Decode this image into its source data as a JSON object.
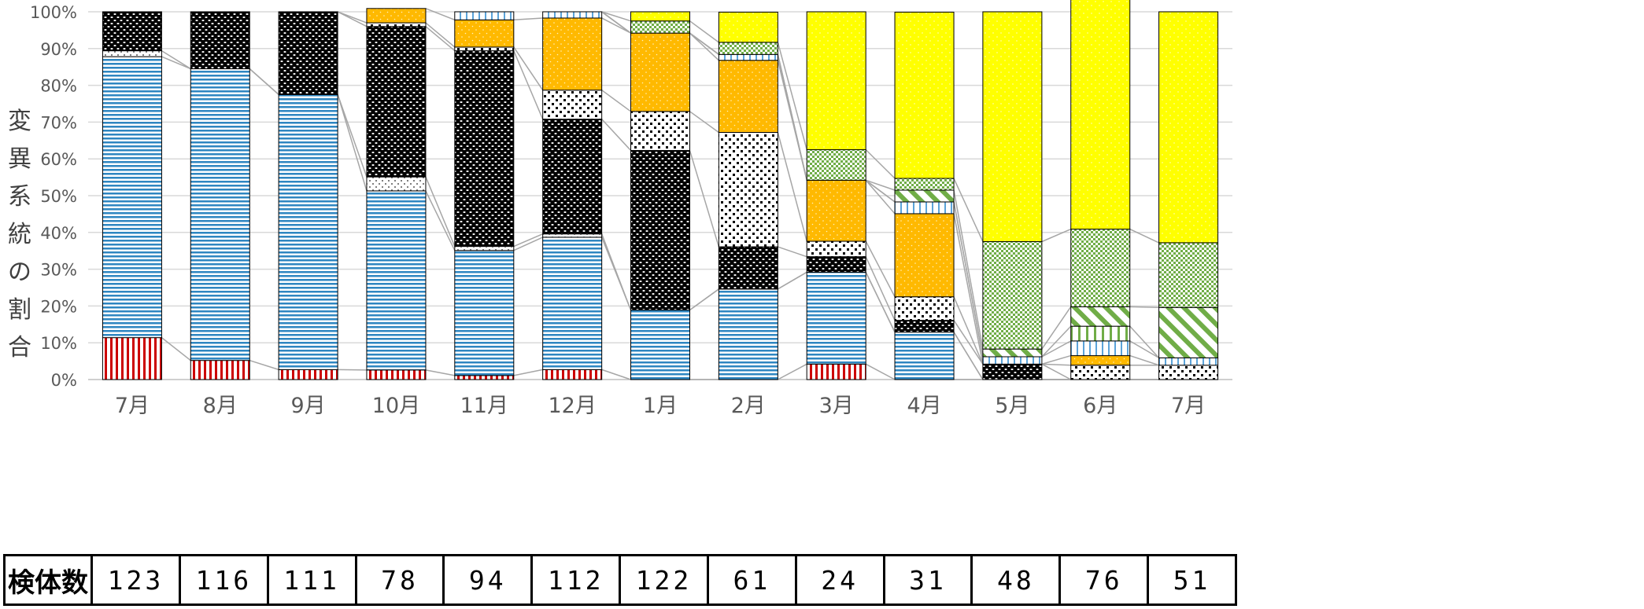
{
  "chart_data": {
    "type": "bar",
    "stacked": true,
    "percent": true,
    "ylabel": "変異系統の割合",
    "ylim": [
      0,
      100
    ],
    "yticks": [
      "0%",
      "10%",
      "20%",
      "30%",
      "40%",
      "50%",
      "60%",
      "70%",
      "80%",
      "90%",
      "100%"
    ],
    "grid": true,
    "categories": [
      "7月",
      "8月",
      "9月",
      "10月",
      "11月",
      "12月",
      "1月",
      "2月",
      "3月",
      "4月",
      "5月",
      "6月",
      "7月"
    ],
    "series": [
      {
        "values": [
          11.4,
          5.2,
          2.7,
          2.6,
          1.1,
          2.7,
          0,
          0,
          4.2,
          0,
          0,
          0,
          0
        ]
      },
      {
        "values": [
          76.4,
          79.3,
          74.8,
          48.7,
          34.0,
          36.0,
          18.9,
          24.6,
          25.0,
          12.9,
          0,
          0,
          0
        ]
      },
      {
        "values": [
          1.6,
          0,
          0,
          3.8,
          1.1,
          0.9,
          0,
          0,
          0,
          0,
          0,
          0,
          0
        ]
      },
      {
        "values": [
          10.6,
          15.5,
          22.5,
          40.9,
          53.2,
          31.2,
          43.4,
          11.5,
          4.2,
          3.2,
          4.2,
          0,
          0
        ]
      },
      {
        "values": [
          0,
          0,
          0,
          1.0,
          1.0,
          7.9,
          10.6,
          31.1,
          4.2,
          6.4,
          0,
          3.9,
          3.9
        ]
      },
      {
        "values": [
          0,
          0,
          0,
          3.9,
          7.4,
          19.6,
          21.3,
          19.6,
          16.6,
          22.6,
          0,
          2.6,
          0
        ]
      },
      {
        "values": [
          0,
          0,
          0,
          0,
          2.2,
          1.7,
          0,
          1.6,
          0,
          3.2,
          2.0,
          4.0,
          2.0
        ]
      },
      {
        "values": [
          0,
          0,
          0,
          0,
          0,
          0,
          0,
          0,
          0,
          0,
          0,
          4.0,
          0
        ]
      },
      {
        "values": [
          0,
          0,
          0,
          0,
          0,
          0,
          0,
          0,
          0,
          3.2,
          2.1,
          5.3,
          13.7
        ]
      },
      {
        "values": [
          0,
          0,
          0,
          0,
          0,
          0,
          3.3,
          3.3,
          8.3,
          3.2,
          29.2,
          21.1,
          17.6
        ]
      },
      {
        "values": [
          0,
          0,
          0,
          0,
          0,
          0,
          2.5,
          8.2,
          37.5,
          45.2,
          62.5,
          63.1,
          62.8
        ]
      }
    ],
    "series_colors": [
      "#cc0000",
      "#2e86c1",
      "#777777",
      "#000000",
      "#000000",
      "#ffb900",
      "#5ba3d9",
      "#70ad47",
      "#70ad47",
      "#70ad47",
      "#ffff00"
    ]
  },
  "table": {
    "header": "検体数",
    "counts": [
      "123",
      "116",
      "111",
      "78",
      "94",
      "112",
      "122",
      "61",
      "24",
      "31",
      "48",
      "76",
      "51"
    ]
  }
}
